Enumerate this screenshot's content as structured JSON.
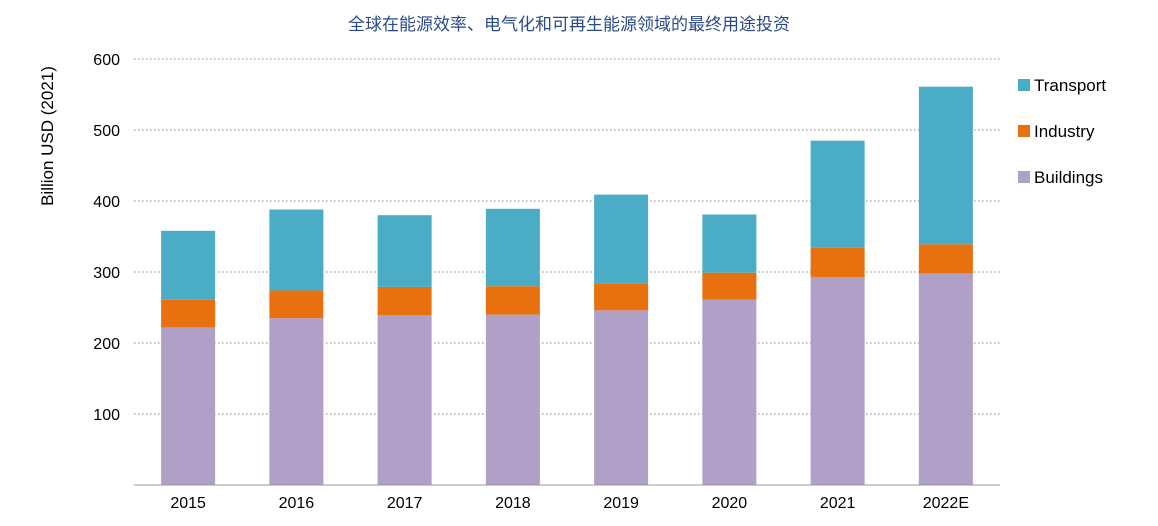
{
  "chart_data": {
    "type": "bar",
    "stacked": true,
    "title": "全球在能源效率、电气化和可再生能源领域的最终用途投资",
    "ylabel": "Billion USD (2021)",
    "xlabel": "",
    "ylim": [
      0,
      600
    ],
    "yticks": [
      100,
      200,
      300,
      400,
      500,
      600
    ],
    "grid": true,
    "legend_position": "right",
    "categories": [
      "2015",
      "2016",
      "2017",
      "2018",
      "2019",
      "2020",
      "2021",
      "2022E"
    ],
    "series": [
      {
        "name": "Buildings",
        "color": "#b09fc6",
        "values": [
          222,
          235,
          239,
          240,
          246,
          261,
          293,
          298
        ]
      },
      {
        "name": "Industry",
        "color": "#e8700f",
        "values": [
          39,
          39,
          40,
          40,
          38,
          38,
          41,
          41
        ]
      },
      {
        "name": "Transport",
        "color": "#4aacc5",
        "values": [
          97,
          114,
          101,
          109,
          125,
          82,
          151,
          222
        ]
      }
    ],
    "legend_order": [
      "Transport",
      "Industry",
      "Buildings"
    ]
  }
}
